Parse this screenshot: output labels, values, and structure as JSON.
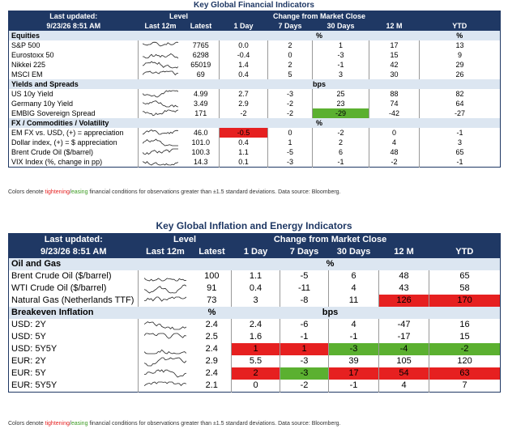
{
  "t1": {
    "title": "Key Global Financial Indicators",
    "hdr": {
      "last_updated": "Last updated:",
      "date": "9/23/26 8:51 AM",
      "level": "Level",
      "change": "Change from Market Close",
      "last12m": "Last 12m",
      "latest": "Latest",
      "d1": "1 Day",
      "d7": "7 Days",
      "d30": "30 Days",
      "m12": "12 M",
      "ytd": "YTD"
    },
    "sections": [
      {
        "name": "Equities",
        "unit": "%",
        "unit_ytd": "%",
        "rows": [
          {
            "label": "S&P 500",
            "latest": "7765",
            "d1": "0.0",
            "d7": "2",
            "d30": "1",
            "m12": "17",
            "ytd": "13",
            "hl": {}
          },
          {
            "label": "Eurostoxx 50",
            "latest": "6298",
            "d1": "-0.4",
            "d7": "0",
            "d30": "-3",
            "m12": "15",
            "ytd": "9",
            "hl": {}
          },
          {
            "label": "Nikkei 225",
            "latest": "65019",
            "d1": "1.4",
            "d7": "2",
            "d30": "-1",
            "m12": "42",
            "ytd": "29",
            "hl": {}
          },
          {
            "label": "MSCI EM",
            "latest": "69",
            "d1": "0.4",
            "d7": "5",
            "d30": "3",
            "m12": "30",
            "ytd": "26",
            "hl": {}
          }
        ]
      },
      {
        "name": "Yields and Spreads",
        "unit": "bps",
        "unit_ytd": "",
        "rows": [
          {
            "label": "US 10y Yield",
            "latest": "4.99",
            "d1": "2.7",
            "d7": "-3",
            "d30": "25",
            "m12": "88",
            "ytd": "82",
            "hl": {}
          },
          {
            "label": "Germany 10y Yield",
            "latest": "3.49",
            "d1": "2.9",
            "d7": "-2",
            "d30": "23",
            "m12": "74",
            "ytd": "64",
            "hl": {}
          },
          {
            "label": "EMBIG Sovereign Spread",
            "latest": "171",
            "d1": "-2",
            "d7": "-2",
            "d30": "-29",
            "m12": "-42",
            "ytd": "-27",
            "hl": {
              "d30": "green"
            }
          }
        ]
      },
      {
        "name": "FX / Commodities / Volatility",
        "unit": "%",
        "unit_ytd": "",
        "rows": [
          {
            "label": "EM FX vs. USD, (+) = appreciation",
            "latest": "46.0",
            "d1": "-0.5",
            "d7": "0",
            "d30": "-2",
            "m12": "0",
            "ytd": "-1",
            "hl": {
              "d1": "red"
            }
          },
          {
            "label": "Dollar index, (+) = $ appreciation",
            "latest": "101.0",
            "d1": "0.4",
            "d7": "1",
            "d30": "2",
            "m12": "4",
            "ytd": "3",
            "hl": {}
          },
          {
            "label": "Brent Crude Oil ($/barrel)",
            "latest": "100.3",
            "d1": "1.1",
            "d7": "-5",
            "d30": "6",
            "m12": "48",
            "ytd": "65",
            "hl": {}
          },
          {
            "label": "VIX Index (%, change in pp)",
            "latest": "14.3",
            "d1": "0.1",
            "d7": "-3",
            "d30": "-1",
            "m12": "-2",
            "ytd": "-1",
            "hl": {}
          }
        ]
      }
    ],
    "note_pre": "Colors denote ",
    "note_tight": "tightening",
    "note_slash": "/",
    "note_ease": "easing",
    "note_post": " financial conditions for observations greater than ±1.5 standard deviations. Data source: Bloomberg."
  },
  "t2": {
    "title": "Key Global Inflation and Energy Indicators",
    "hdr": {
      "last_updated": "Last updated:",
      "date": "9/23/26 8:51 AM",
      "level": "Level",
      "change": "Change from Market Close",
      "last12m": "Last 12m",
      "latest": "Latest",
      "d1": "1 Day",
      "d7": "7 Days",
      "d30": "30 Days",
      "m12": "12 M",
      "ytd": "YTD"
    },
    "sections": [
      {
        "name": "Oil and Gas",
        "unit_level": "",
        "unit": "%",
        "rows": [
          {
            "label": "Brent Crude Oil ($/barrel)",
            "latest": "100",
            "d1": "1.1",
            "d7": "-5",
            "d30": "6",
            "m12": "48",
            "ytd": "65",
            "hl": {}
          },
          {
            "label": "WTI Crude Oil ($/barrel)",
            "latest": "91",
            "d1": "0.4",
            "d7": "-11",
            "d30": "4",
            "m12": "43",
            "ytd": "58",
            "hl": {}
          },
          {
            "label": "Natural Gas (Netherlands TTF)",
            "latest": "73",
            "d1": "3",
            "d7": "-8",
            "d30": "11",
            "m12": "126",
            "ytd": "170",
            "hl": {
              "m12": "red",
              "ytd": "red"
            }
          }
        ]
      },
      {
        "name": "Breakeven Inflation",
        "unit_level": "%",
        "unit": "bps",
        "rows": [
          {
            "label": "USD: 2Y",
            "latest": "2.4",
            "d1": "2.4",
            "d7": "-6",
            "d30": "4",
            "m12": "-47",
            "ytd": "16",
            "hl": {}
          },
          {
            "label": "USD: 5Y",
            "latest": "2.5",
            "d1": "1.6",
            "d7": "-1",
            "d30": "-1",
            "m12": "-17",
            "ytd": "15",
            "hl": {}
          },
          {
            "label": "USD: 5Y5Y",
            "latest": "2.4",
            "d1": "1",
            "d7": "1",
            "d30": "-3",
            "m12": "-4",
            "ytd": "-2",
            "hl": {
              "d1": "red",
              "d7": "red",
              "d30": "green",
              "m12": "green",
              "ytd": "green"
            }
          },
          {
            "label": "EUR: 2Y",
            "latest": "2.9",
            "d1": "5.5",
            "d7": "-3",
            "d30": "39",
            "m12": "105",
            "ytd": "120",
            "hl": {}
          },
          {
            "label": "EUR: 5Y",
            "latest": "2.4",
            "d1": "2",
            "d7": "-3",
            "d30": "17",
            "m12": "54",
            "ytd": "63",
            "hl": {
              "d1": "red",
              "d7": "green",
              "d30": "red",
              "m12": "red",
              "ytd": "red"
            }
          },
          {
            "label": "EUR: 5Y5Y",
            "latest": "2.1",
            "d1": "0",
            "d7": "-2",
            "d30": "-1",
            "m12": "4",
            "ytd": "7",
            "hl": {}
          }
        ]
      }
    ],
    "note_pre": "Colors denote ",
    "note_tight": "tightening",
    "note_slash": "/",
    "note_ease": "easing",
    "note_post": " financial conditions for observations greater than ±1.5 standard deviations. Data source: Bloomberg."
  }
}
